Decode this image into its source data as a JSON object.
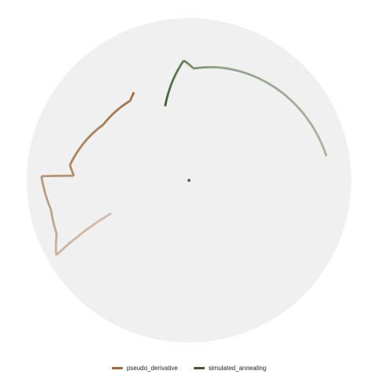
{
  "chart_data": {
    "type": "line",
    "coordinate_system": "polar",
    "title": "",
    "xlabel": "",
    "ylabel": "",
    "grid": false,
    "panel_background": "#f0f0f0",
    "angle_range_deg": [
      0,
      360
    ],
    "radius_range": [
      0,
      1
    ],
    "legend": {
      "position": "bottom"
    },
    "center_marker_color": "#666666",
    "series": [
      {
        "name": "pseudo_derivative",
        "color": "#9c6b3d",
        "points": [
          {
            "angle": 247.1,
            "radius": 0.52
          },
          {
            "angle": 240.6,
            "radius": 0.94
          },
          {
            "angle": 248.0,
            "radius": 0.88
          },
          {
            "angle": 258.0,
            "radius": 0.87
          },
          {
            "angle": 271.6,
            "radius": 0.91
          },
          {
            "angle": 272.3,
            "radius": 0.71
          },
          {
            "angle": 277.3,
            "radius": 0.74
          },
          {
            "angle": 303.1,
            "radius": 0.63
          },
          {
            "angle": 323.6,
            "radius": 0.61
          },
          {
            "angle": 328.0,
            "radius": 0.64
          }
        ]
      },
      {
        "name": "simulated_annealing",
        "color": "#3d5a2a",
        "points": [
          {
            "angle": 80.0,
            "radius": 0.86
          },
          {
            "angle": 15.0,
            "radius": 0.72
          },
          {
            "angle": 2.4,
            "radius": 0.69
          },
          {
            "angle": 357.5,
            "radius": 0.74
          },
          {
            "angle": 347.1,
            "radius": 0.56
          },
          {
            "angle": 342.2,
            "radius": 0.48
          }
        ]
      }
    ]
  }
}
